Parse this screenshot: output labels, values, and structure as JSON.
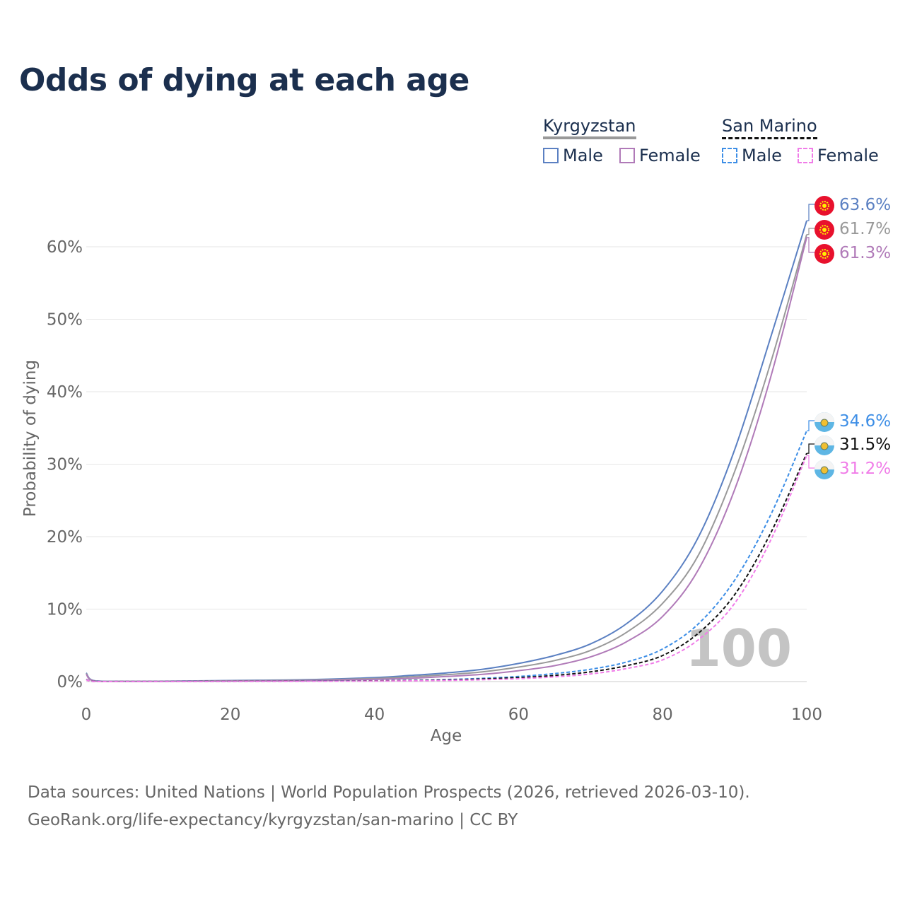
{
  "title": "Odds of dying at each age",
  "legend": {
    "groups": [
      {
        "name": "Kyrgyzstan",
        "color": "#999999",
        "dash": false,
        "items": [
          {
            "label": "Male",
            "color": "#5b80c2"
          },
          {
            "label": "Female",
            "color": "#b07ab8"
          }
        ]
      },
      {
        "name": "San Marino",
        "color": "#111111",
        "dash": true,
        "items": [
          {
            "label": "Male",
            "color": "#3d8ee6"
          },
          {
            "label": "Female",
            "color": "#f07ce8"
          }
        ]
      }
    ]
  },
  "footer": {
    "line1": "Data sources: United Nations | World Population Prospects (2026, retrieved 2026-03-10).",
    "line2": "GeoRank.org/life-expectancy/kyrgyzstan/san-marino | CC BY"
  },
  "chart_data": {
    "type": "line",
    "title": "Odds of dying at each age",
    "xlabel": "Age",
    "ylabel": "Probability of dying",
    "xlim": [
      0,
      100
    ],
    "ylim": [
      0,
      65
    ],
    "xticks": [
      0,
      20,
      40,
      60,
      80,
      100
    ],
    "yticks": [
      0,
      10,
      20,
      30,
      40,
      50,
      60
    ],
    "ytick_labels": [
      "0%",
      "10%",
      "20%",
      "30%",
      "40%",
      "50%",
      "60%"
    ],
    "watermark": "100",
    "x": [
      0,
      1,
      5,
      10,
      20,
      30,
      40,
      45,
      50,
      55,
      60,
      65,
      70,
      75,
      80,
      85,
      90,
      95,
      100
    ],
    "series": [
      {
        "name": "Kyrgyzstan Male",
        "color": "#5b80c2",
        "dash": false,
        "end_label": "63.6%",
        "values": [
          1.2,
          0.15,
          0.05,
          0.05,
          0.15,
          0.25,
          0.55,
          0.85,
          1.2,
          1.7,
          2.5,
          3.6,
          5.2,
          8.0,
          12.5,
          20.0,
          32.0,
          47.5,
          63.6
        ]
      },
      {
        "name": "Kyrgyzstan Total",
        "color": "#999999",
        "dash": false,
        "end_label": "61.7%",
        "values": [
          1.1,
          0.12,
          0.04,
          0.04,
          0.11,
          0.19,
          0.42,
          0.65,
          0.95,
          1.35,
          2.0,
          2.9,
          4.3,
          6.8,
          10.8,
          17.5,
          29.0,
          44.0,
          61.7
        ]
      },
      {
        "name": "Kyrgyzstan Female",
        "color": "#b07ab8",
        "dash": false,
        "end_label": "61.3%",
        "values": [
          1.0,
          0.1,
          0.03,
          0.03,
          0.08,
          0.13,
          0.3,
          0.45,
          0.7,
          1.0,
          1.5,
          2.2,
          3.4,
          5.5,
          9.0,
          15.5,
          26.5,
          42.0,
          61.3
        ]
      },
      {
        "name": "San Marino Male",
        "color": "#3d8ee6",
        "dash": true,
        "end_label": "34.6%",
        "values": [
          0.3,
          0.03,
          0.01,
          0.01,
          0.04,
          0.06,
          0.12,
          0.18,
          0.28,
          0.45,
          0.7,
          1.1,
          1.7,
          2.7,
          4.5,
          8.0,
          14.0,
          23.0,
          34.6
        ]
      },
      {
        "name": "San Marino Total",
        "color": "#111111",
        "dash": true,
        "end_label": "31.5%",
        "values": [
          0.28,
          0.03,
          0.01,
          0.01,
          0.03,
          0.05,
          0.1,
          0.14,
          0.22,
          0.35,
          0.55,
          0.85,
          1.35,
          2.2,
          3.6,
          6.7,
          12.0,
          20.5,
          31.5
        ]
      },
      {
        "name": "San Marino Female",
        "color": "#f07ce8",
        "dash": true,
        "end_label": "31.2%",
        "values": [
          0.25,
          0.02,
          0.01,
          0.01,
          0.02,
          0.03,
          0.07,
          0.1,
          0.16,
          0.25,
          0.4,
          0.65,
          1.05,
          1.8,
          3.0,
          5.8,
          10.8,
          19.5,
          31.2
        ]
      }
    ]
  }
}
